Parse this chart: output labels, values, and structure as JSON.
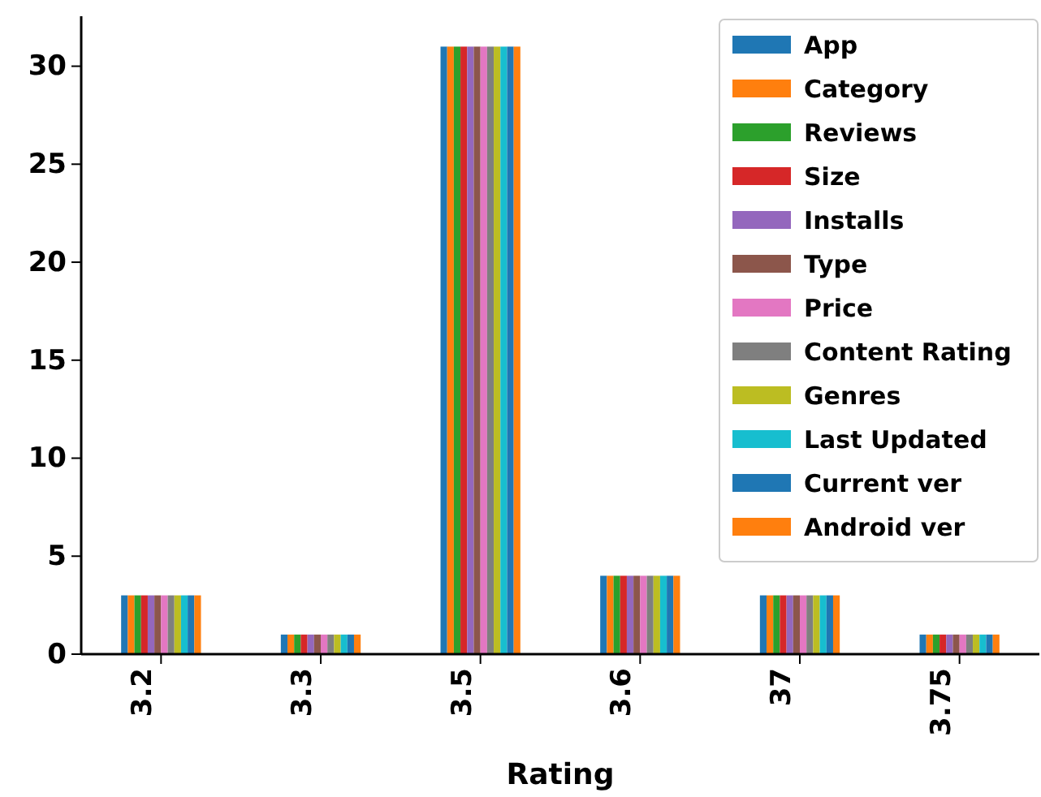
{
  "chart_data": {
    "type": "bar",
    "xlabel": "Rating",
    "categories": [
      "3.2",
      "3.3",
      "3.5",
      "3.6",
      "37",
      "3.75"
    ],
    "series": [
      {
        "name": "App",
        "color": "#1f77b4",
        "values": [
          3,
          1,
          31,
          4,
          3,
          1
        ]
      },
      {
        "name": "Category",
        "color": "#ff7f0e",
        "values": [
          3,
          1,
          31,
          4,
          3,
          1
        ]
      },
      {
        "name": "Reviews",
        "color": "#2ca02c",
        "values": [
          3,
          1,
          31,
          4,
          3,
          1
        ]
      },
      {
        "name": "Size",
        "color": "#d62728",
        "values": [
          3,
          1,
          31,
          4,
          3,
          1
        ]
      },
      {
        "name": "Installs",
        "color": "#9467bd",
        "values": [
          3,
          1,
          31,
          4,
          3,
          1
        ]
      },
      {
        "name": "Type",
        "color": "#8c564b",
        "values": [
          3,
          1,
          31,
          4,
          3,
          1
        ]
      },
      {
        "name": "Price",
        "color": "#e377c2",
        "values": [
          3,
          1,
          31,
          4,
          3,
          1
        ]
      },
      {
        "name": "Content Rating",
        "color": "#7f7f7f",
        "values": [
          3,
          1,
          31,
          4,
          3,
          1
        ]
      },
      {
        "name": "Genres",
        "color": "#bcbd22",
        "values": [
          3,
          1,
          31,
          4,
          3,
          1
        ]
      },
      {
        "name": "Last Updated",
        "color": "#17becf",
        "values": [
          3,
          1,
          31,
          4,
          3,
          1
        ]
      },
      {
        "name": "Current ver",
        "color": "#1f77b4",
        "values": [
          3,
          1,
          31,
          4,
          3,
          1
        ]
      },
      {
        "name": "Android ver",
        "color": "#ff7f0e",
        "values": [
          3,
          1,
          31,
          4,
          3,
          1
        ]
      }
    ],
    "ylim": [
      0,
      32.55
    ],
    "yticks": [
      0,
      5,
      10,
      15,
      20,
      25,
      30
    ],
    "grid": false,
    "legend": "top right"
  }
}
